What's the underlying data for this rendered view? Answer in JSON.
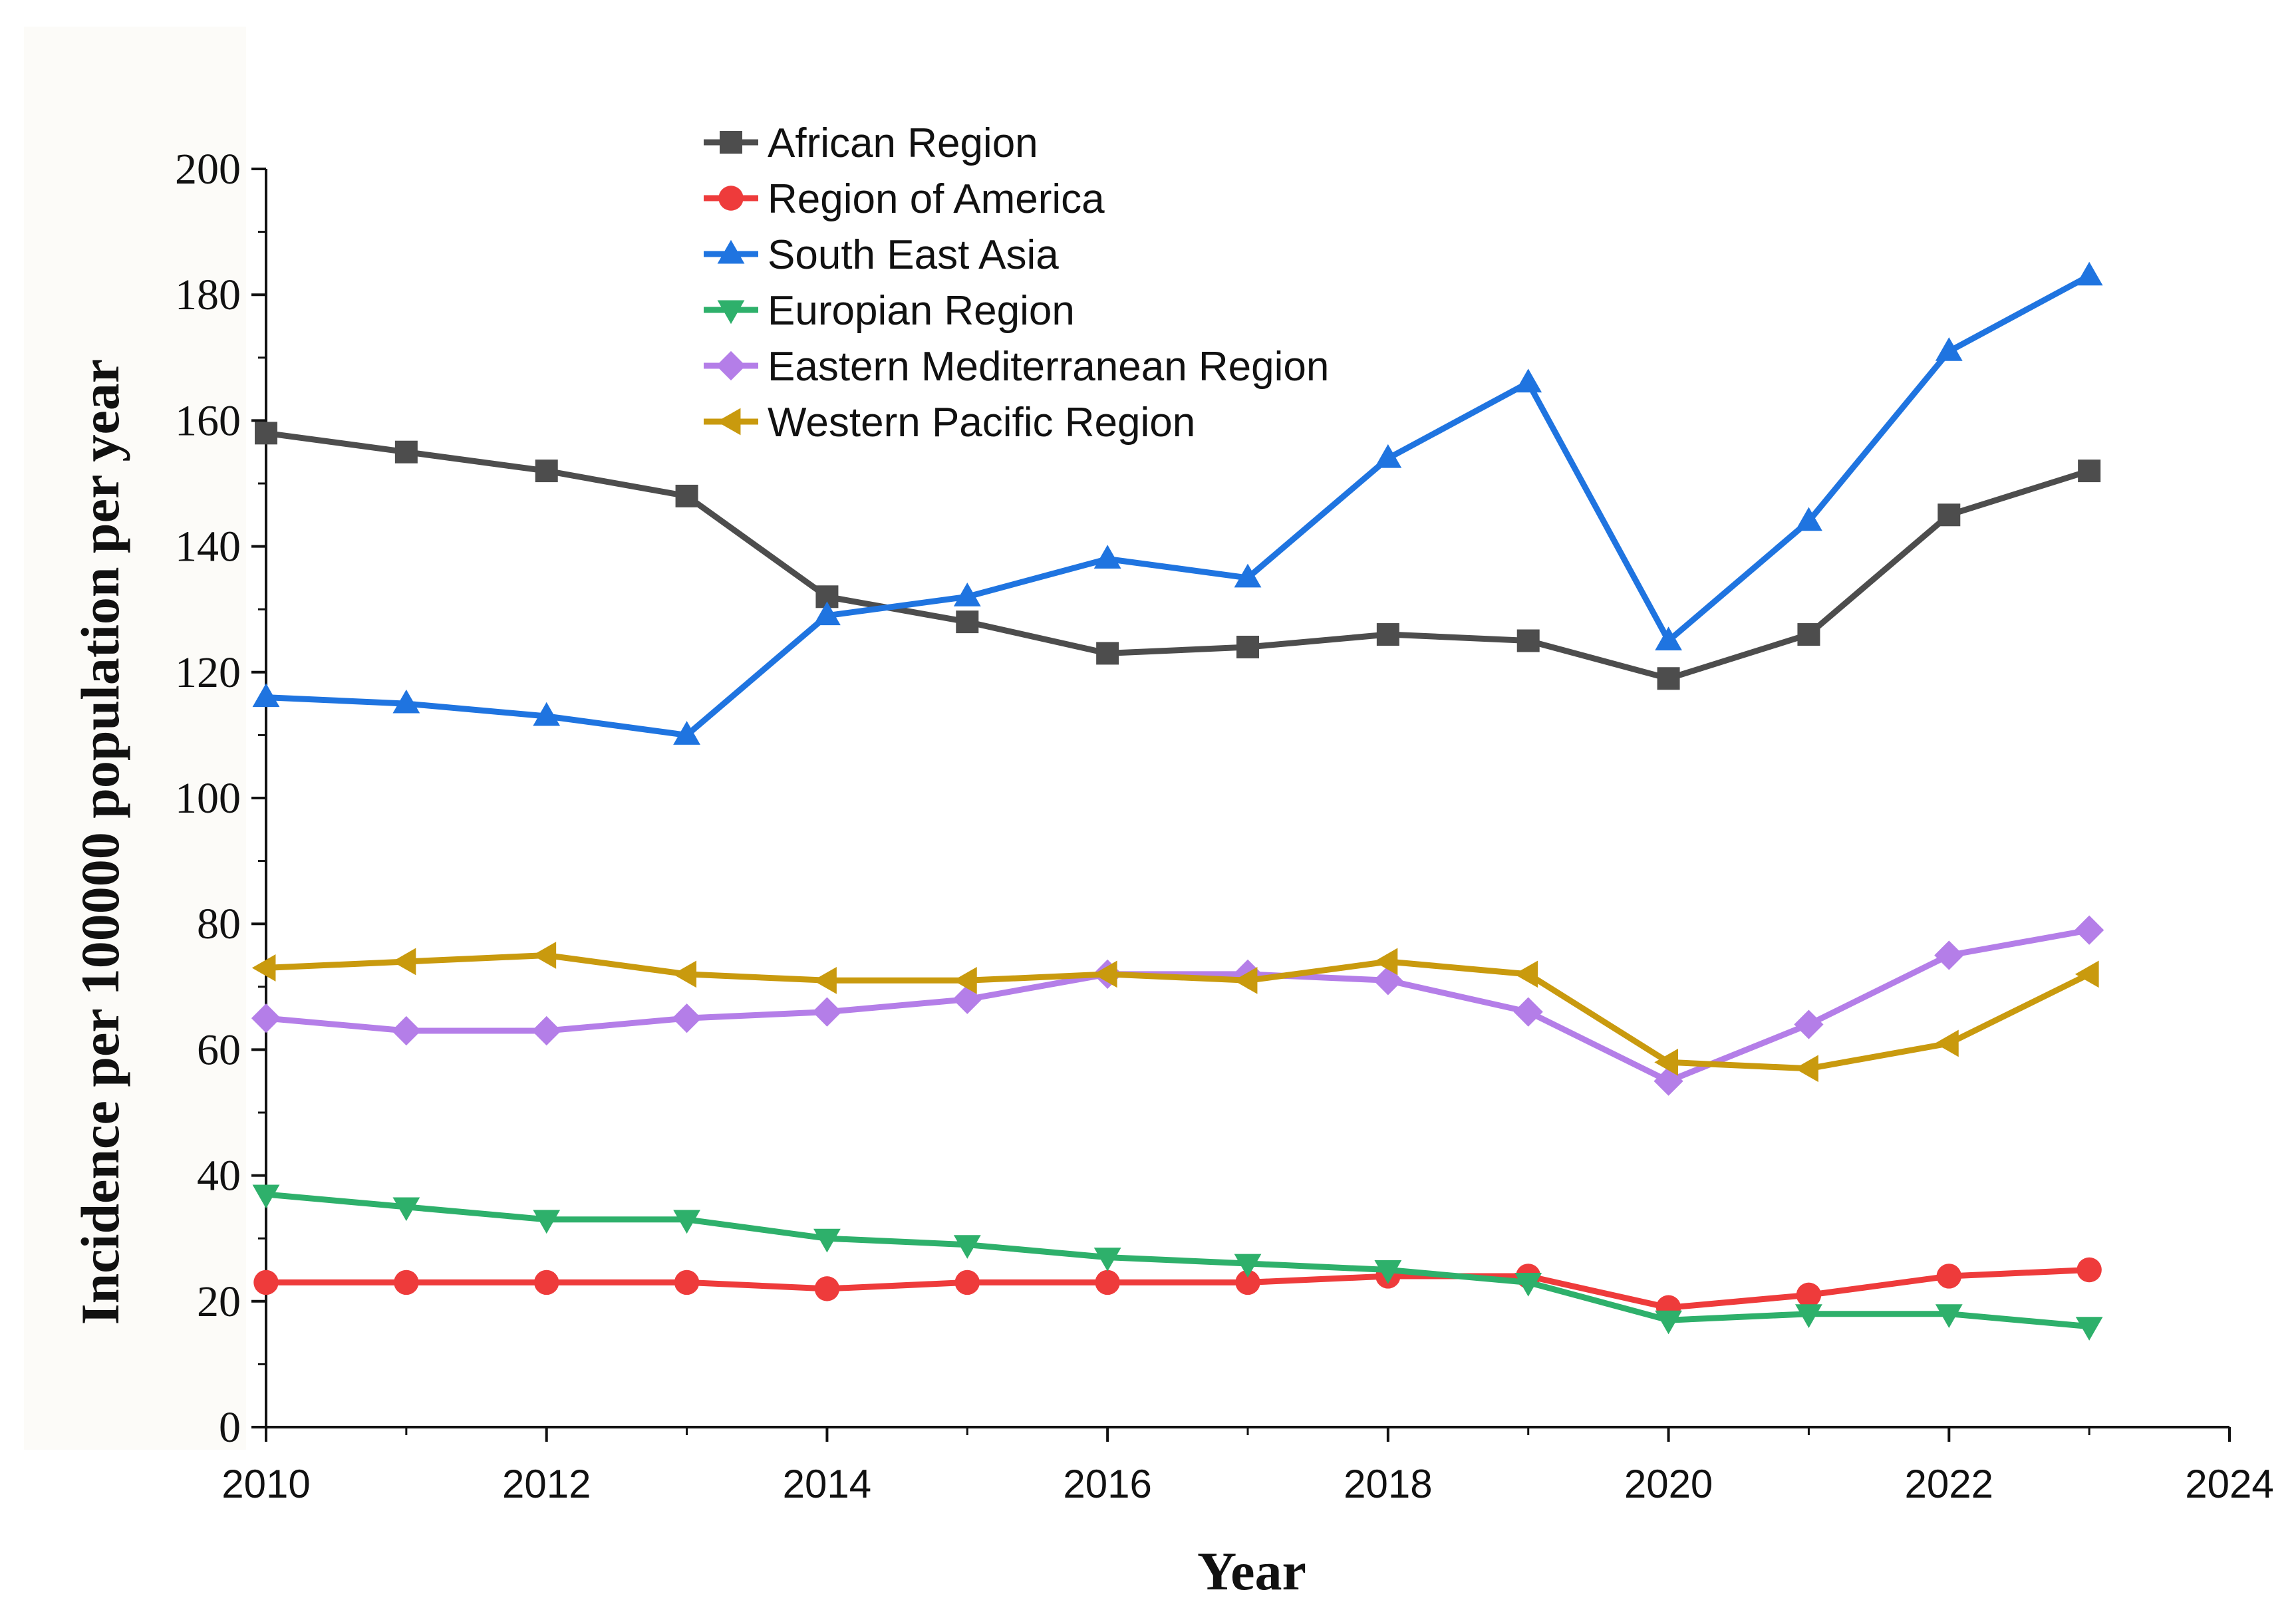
{
  "chart_data": {
    "type": "line",
    "title": "",
    "xlabel": "Year",
    "ylabel": "Incidence per 100000 population per year",
    "xlim": [
      2010,
      2024
    ],
    "ylim": [
      0,
      200
    ],
    "x_ticks": [
      2010,
      2012,
      2014,
      2016,
      2018,
      2020,
      2022,
      2024
    ],
    "y_ticks": [
      0,
      20,
      40,
      60,
      80,
      100,
      120,
      140,
      160,
      180,
      200
    ],
    "grid": false,
    "legend_position": "top-center",
    "x": [
      2010,
      2011,
      2012,
      2013,
      2014,
      2015,
      2016,
      2017,
      2018,
      2019,
      2020,
      2021,
      2022,
      2023
    ],
    "series": [
      {
        "name": "African Region",
        "color": "#4d4d4d",
        "marker": "square",
        "values": [
          158,
          155,
          152,
          148,
          132,
          128,
          123,
          124,
          126,
          125,
          119,
          126,
          145,
          152
        ]
      },
      {
        "name": "Region of America",
        "color": "#ee3b3b",
        "marker": "circle",
        "values": [
          23,
          23,
          23,
          23,
          22,
          23,
          23,
          23,
          24,
          24,
          19,
          21,
          24,
          25
        ]
      },
      {
        "name": "South East Asia",
        "color": "#1f74e0",
        "marker": "triangle-up",
        "values": [
          116,
          115,
          113,
          110,
          129,
          132,
          138,
          135,
          154,
          166,
          125,
          144,
          171,
          183
        ]
      },
      {
        "name": "Europian Region",
        "color": "#2eb06b",
        "marker": "triangle-down",
        "values": [
          37,
          35,
          33,
          33,
          30,
          29,
          27,
          26,
          25,
          23,
          17,
          18,
          18,
          16
        ]
      },
      {
        "name": "Eastern Mediterranean Region",
        "color": "#b47ee8",
        "marker": "diamond",
        "values": [
          65,
          63,
          63,
          65,
          66,
          68,
          72,
          72,
          71,
          66,
          55,
          64,
          75,
          79
        ]
      },
      {
        "name": "Western Pacific Region",
        "color": "#c99a0e",
        "marker": "triangle-left",
        "values": [
          73,
          74,
          75,
          72,
          71,
          71,
          72,
          71,
          74,
          72,
          58,
          57,
          61,
          72
        ]
      }
    ]
  }
}
